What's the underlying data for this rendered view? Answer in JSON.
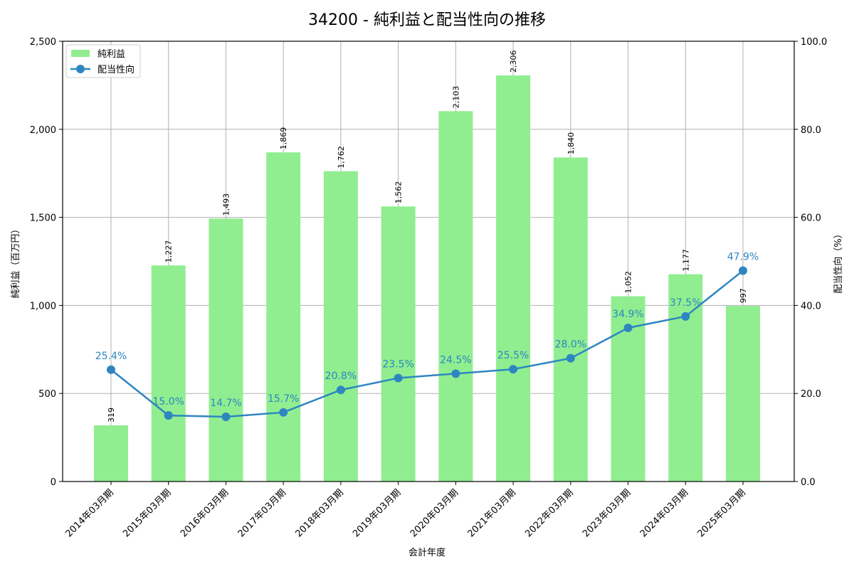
{
  "chart_data": {
    "type": "bar+line",
    "title": "34200 - 純利益と配当性向の推移",
    "xlabel": "会計年度",
    "ylabel_left": "純利益（百万円）",
    "ylabel_right": "配当性向（%）",
    "ylim_left": [
      0,
      2500
    ],
    "ylim_right": [
      0,
      100
    ],
    "yticks_left": [
      "0",
      "500",
      "1,000",
      "1,500",
      "2,000",
      "2,500"
    ],
    "yticks_right": [
      "0.0",
      "20.0",
      "40.0",
      "60.0",
      "80.0",
      "100.0"
    ],
    "grid": true,
    "legend_position": "upper left",
    "categories": [
      "2014年03月期",
      "2015年03月期",
      "2016年03月期",
      "2017年03月期",
      "2018年03月期",
      "2019年03月期",
      "2020年03月期",
      "2021年03月期",
      "2022年03月期",
      "2023年03月期",
      "2024年03月期",
      "2025年03月期"
    ],
    "series": [
      {
        "name": "純利益",
        "type": "bar",
        "axis": "left",
        "color": "#90ee90",
        "values": [
          319,
          1227,
          1493,
          1869,
          1762,
          1562,
          2103,
          2306,
          1840,
          1052,
          1177,
          997
        ],
        "labels": [
          "319",
          "1,227",
          "1,493",
          "1,869",
          "1,762",
          "1,562",
          "2,103",
          "2,306",
          "1,840",
          "1,052",
          "1,177",
          "997"
        ]
      },
      {
        "name": "配当性向",
        "type": "line",
        "axis": "right",
        "color": "#2e86c1",
        "values": [
          25.4,
          15.0,
          14.7,
          15.7,
          20.8,
          23.5,
          24.5,
          25.5,
          28.0,
          34.9,
          37.5,
          47.9
        ],
        "labels": [
          "25.4%",
          "15.0%",
          "14.7%",
          "15.7%",
          "20.8%",
          "23.5%",
          "24.5%",
          "25.5%",
          "28.0%",
          "34.9%",
          "37.5%",
          "47.9%"
        ]
      }
    ]
  },
  "legend": {
    "bar_label": "純利益",
    "line_label": "配当性向"
  }
}
